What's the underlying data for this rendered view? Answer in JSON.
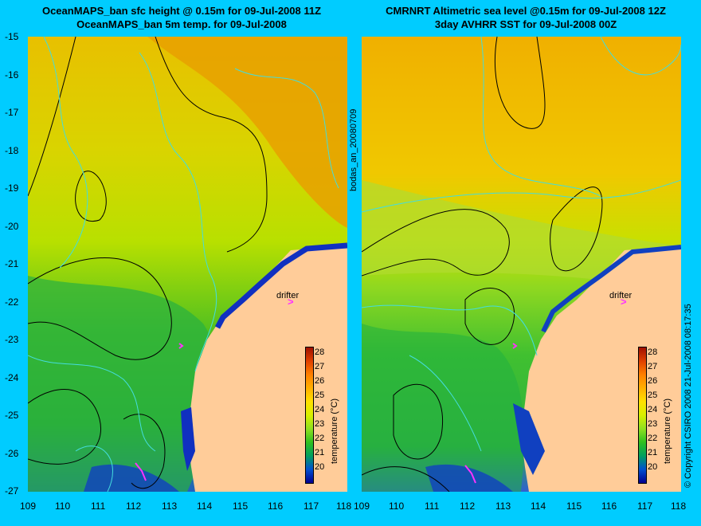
{
  "left_panel": {
    "title_line1": "OceanMAPS_ban sfc height @ 0.15m for 09-Jul-2008 11Z",
    "title_line2": "OceanMAPS_ban 5m temp. for 09-Jul-2008"
  },
  "right_panel": {
    "title_line1": "CMRNRT Altimetric sea level  @0.15m  for 09-Jul-2008 12Z",
    "title_line2": "3day AVHRR SST for 09-Jul-2008 00Z"
  },
  "y_ticks": [
    "-15",
    "-16",
    "-17",
    "-18",
    "-19",
    "-20",
    "-21",
    "-22",
    "-23",
    "-24",
    "-25",
    "-26",
    "-27"
  ],
  "x_ticks": [
    "109",
    "110",
    "111",
    "112",
    "113",
    "114",
    "115",
    "116",
    "117",
    "118"
  ],
  "colorbar": {
    "title": "temperature (°C)",
    "labels": [
      "28",
      "27",
      "26",
      "25",
      "24",
      "23",
      "22",
      "21",
      "20"
    ],
    "colors": [
      "#a01000",
      "#e04000",
      "#ff8000",
      "#ffb000",
      "#ffe000",
      "#d8f000",
      "#90e020",
      "#30c020",
      "#00a060",
      "#0050d0",
      "#000090"
    ]
  },
  "drifter_label": "drifter",
  "mid_label": "bodas_an_20080709",
  "copyright": "© Copyright CSIRO 2008   21-Jul-2008 08:17:35",
  "colors": {
    "background": "#00ccff",
    "land": "#ffcc99",
    "contour_black": "#000000",
    "contour_cyan": "#44dddd",
    "drifter": "#ff33ff"
  }
}
